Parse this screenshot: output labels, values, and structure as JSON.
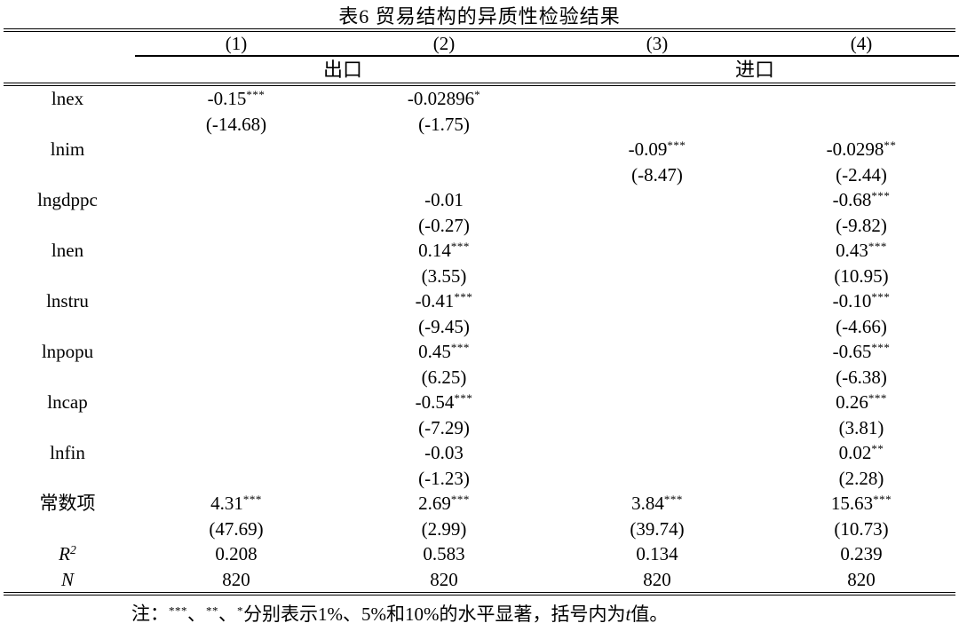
{
  "title": "表6 贸易结构的异质性检验结果",
  "colors": {
    "text": "#000000",
    "background": "#ffffff",
    "rule": "#000000"
  },
  "table": {
    "columns": [
      "(1)",
      "(2)",
      "(3)",
      "(4)"
    ],
    "groups": [
      {
        "label": "出口",
        "span": 2
      },
      {
        "label": "进口",
        "span": 2
      }
    ],
    "lines": [
      {
        "label": "lnex",
        "cells": [
          [
            "-0.15",
            "***"
          ],
          [
            "-0.02896",
            "*"
          ],
          null,
          null
        ]
      },
      {
        "label": "",
        "cells": [
          [
            "(-14.68)"
          ],
          [
            "(-1.75)"
          ],
          null,
          null
        ]
      },
      {
        "label": "lnim",
        "cells": [
          null,
          null,
          [
            "-0.09",
            "***"
          ],
          [
            "-0.0298",
            "**"
          ]
        ]
      },
      {
        "label": "",
        "cells": [
          null,
          null,
          [
            "(-8.47)"
          ],
          [
            "(-2.44)"
          ]
        ]
      },
      {
        "label": "lngdppc",
        "cells": [
          null,
          [
            "-0.01"
          ],
          null,
          [
            "-0.68",
            "***"
          ]
        ]
      },
      {
        "label": "",
        "cells": [
          null,
          [
            "(-0.27)"
          ],
          null,
          [
            "(-9.82)"
          ]
        ]
      },
      {
        "label": "lnen",
        "cells": [
          null,
          [
            "0.14",
            "***"
          ],
          null,
          [
            "0.43",
            "***"
          ]
        ]
      },
      {
        "label": "",
        "cells": [
          null,
          [
            "(3.55)"
          ],
          null,
          [
            "(10.95)"
          ]
        ]
      },
      {
        "label": "lnstru",
        "cells": [
          null,
          [
            "-0.41",
            "***"
          ],
          null,
          [
            "-0.10",
            "***"
          ]
        ]
      },
      {
        "label": "",
        "cells": [
          null,
          [
            "(-9.45)"
          ],
          null,
          [
            "(-4.66)"
          ]
        ]
      },
      {
        "label": "lnpopu",
        "cells": [
          null,
          [
            "0.45",
            "***"
          ],
          null,
          [
            "-0.65",
            "***"
          ]
        ]
      },
      {
        "label": "",
        "cells": [
          null,
          [
            "(6.25)"
          ],
          null,
          [
            "(-6.38)"
          ]
        ]
      },
      {
        "label": "lncap",
        "cells": [
          null,
          [
            "-0.54",
            "***"
          ],
          null,
          [
            "0.26",
            "***"
          ]
        ]
      },
      {
        "label": "",
        "cells": [
          null,
          [
            "(-7.29)"
          ],
          null,
          [
            "(3.81)"
          ]
        ]
      },
      {
        "label": "lnfin",
        "cells": [
          null,
          [
            "-0.03"
          ],
          null,
          [
            "0.02",
            "**"
          ]
        ]
      },
      {
        "label": "",
        "cells": [
          null,
          [
            "(-1.23)"
          ],
          null,
          [
            "(2.28)"
          ]
        ]
      },
      {
        "label": "常数项",
        "cells": [
          [
            "4.31",
            "***"
          ],
          [
            "2.69",
            "***"
          ],
          [
            "3.84",
            "***"
          ],
          [
            "15.63",
            "***"
          ]
        ]
      },
      {
        "label": "",
        "cells": [
          [
            "(47.69)"
          ],
          [
            "(2.99)"
          ],
          [
            "(39.74)"
          ],
          [
            "(10.73)"
          ]
        ]
      },
      {
        "label": "R",
        "labelSup": "2",
        "labelItalic": true,
        "cells": [
          [
            "0.208"
          ],
          [
            "0.583"
          ],
          [
            "0.134"
          ],
          [
            "0.239"
          ]
        ]
      },
      {
        "label": "N",
        "labelItalic": true,
        "cells": [
          [
            "820"
          ],
          [
            "820"
          ],
          [
            "820"
          ],
          [
            "820"
          ]
        ]
      }
    ]
  },
  "note": {
    "prefix": "注：",
    "parts": [
      [
        "sup",
        "***"
      ],
      [
        "text",
        "、"
      ],
      [
        "sup",
        "**"
      ],
      [
        "text",
        "、"
      ],
      [
        "sup",
        "*"
      ],
      [
        "text",
        "分别表示1%、5%和10%的水平显著，括号内为"
      ],
      [
        "i",
        "t"
      ],
      [
        "text",
        "值。"
      ]
    ]
  }
}
